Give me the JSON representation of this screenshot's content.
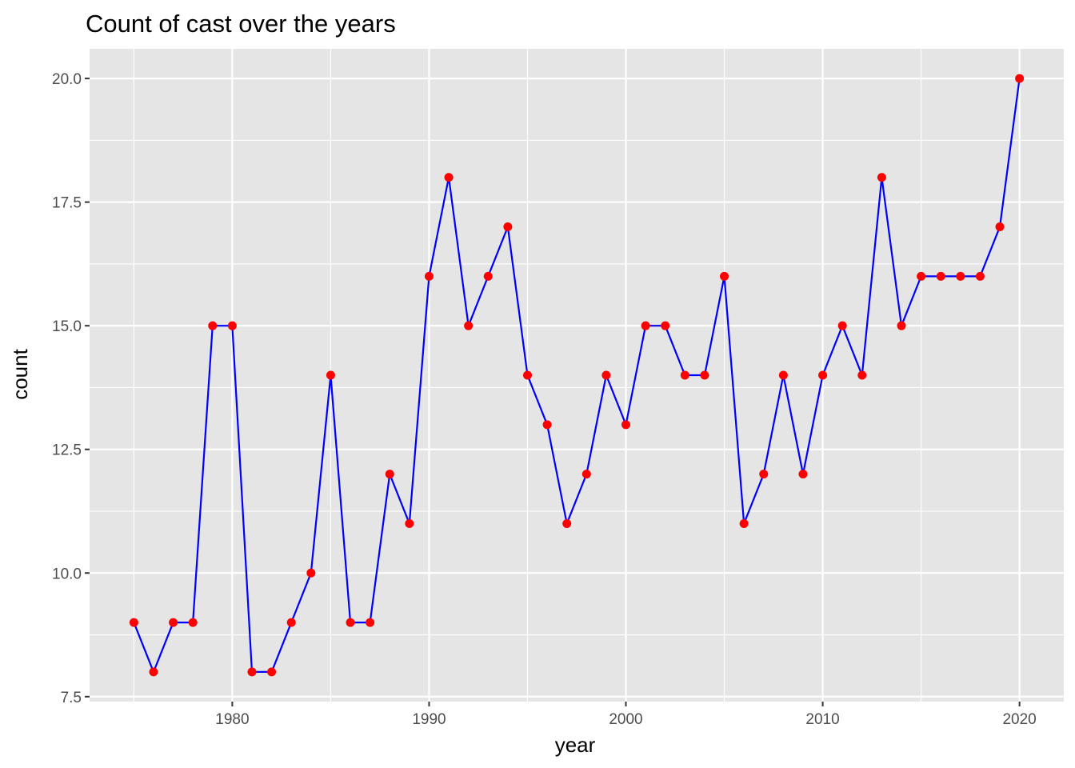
{
  "chart_data": {
    "type": "line",
    "title": "Count of cast over the years",
    "xlabel": "year",
    "ylabel": "count",
    "x": [
      1975,
      1976,
      1977,
      1978,
      1979,
      1980,
      1981,
      1982,
      1983,
      1984,
      1985,
      1986,
      1987,
      1988,
      1989,
      1990,
      1991,
      1992,
      1993,
      1994,
      1995,
      1996,
      1997,
      1998,
      1999,
      2000,
      2001,
      2002,
      2003,
      2004,
      2005,
      2006,
      2007,
      2008,
      2009,
      2010,
      2011,
      2012,
      2013,
      2014,
      2015,
      2016,
      2017,
      2018,
      2019,
      2020
    ],
    "series": [
      {
        "values": [
          9,
          8,
          9,
          9,
          15,
          15,
          8,
          8,
          9,
          10,
          14,
          9,
          9,
          12,
          11,
          16,
          18,
          15,
          16,
          17,
          14,
          13,
          11,
          12,
          14,
          13,
          15,
          15,
          14,
          14,
          16,
          11,
          12,
          14,
          12,
          14,
          15,
          14,
          18,
          15,
          16,
          16,
          16,
          16,
          17,
          20
        ],
        "line_color": "#0000ff",
        "point_color": "#ff0000"
      }
    ],
    "xlim": [
      1972.75,
      2022.25
    ],
    "ylim": [
      7.4,
      20.6
    ],
    "x_ticks": [
      1980,
      1990,
      2000,
      2010,
      2020
    ],
    "x_tick_labels": [
      "1980",
      "1990",
      "2000",
      "2010",
      "2020"
    ],
    "x_minor_ticks": [
      1975,
      1985,
      1995,
      2005,
      2015
    ],
    "y_ticks": [
      7.5,
      10.0,
      12.5,
      15.0,
      17.5,
      20.0
    ],
    "y_tick_labels": [
      "7.5",
      "10.0",
      "12.5",
      "15.0",
      "17.5",
      "20.0"
    ],
    "y_minor_ticks": [
      8.75,
      11.25,
      13.75,
      16.25,
      18.75
    ],
    "grid": true,
    "legend": "none",
    "panel_background": "#e5e5e5",
    "grid_color": "#ffffff"
  }
}
